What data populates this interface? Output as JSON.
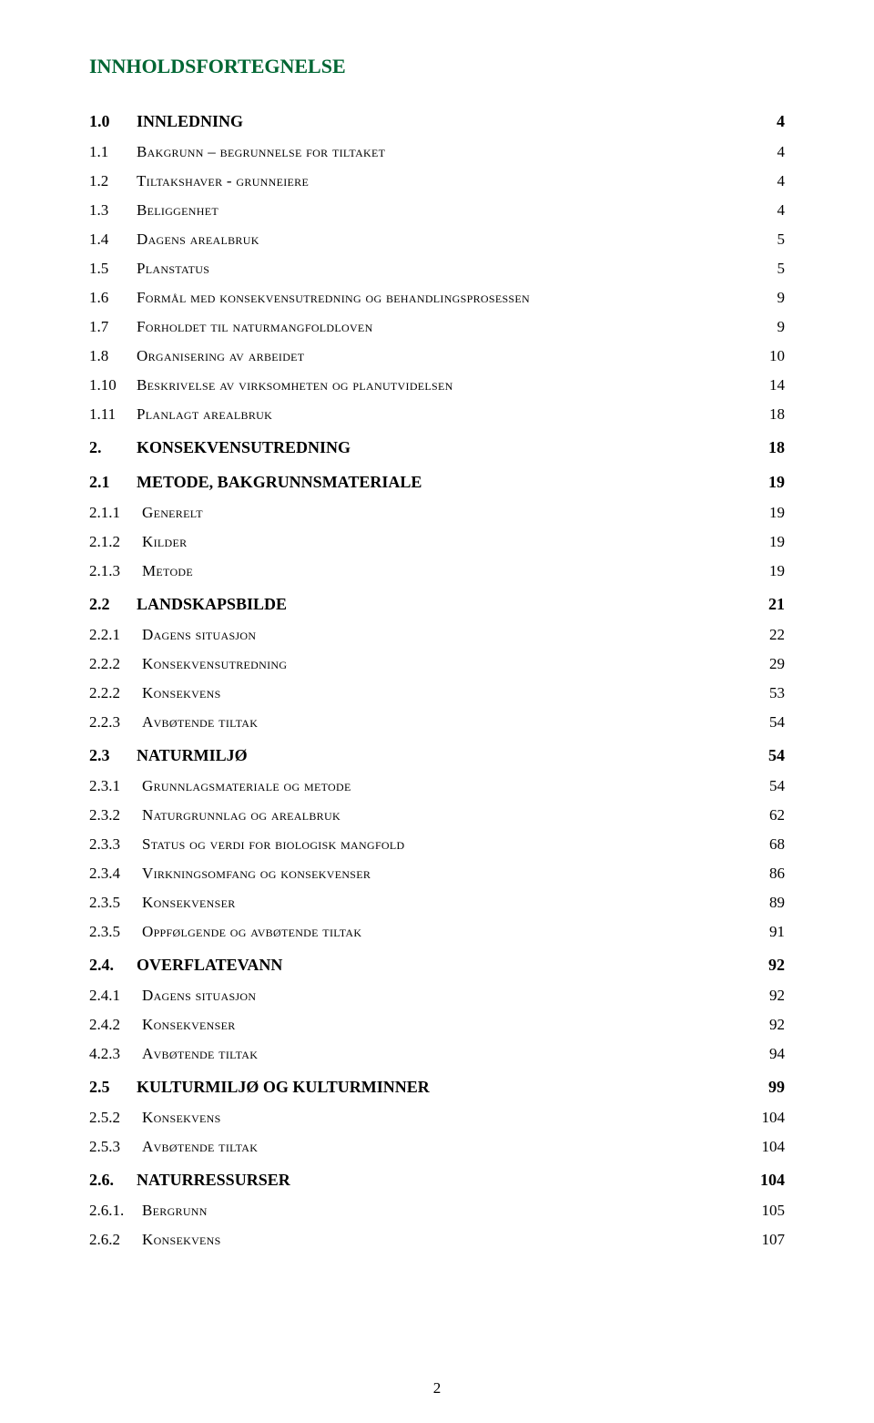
{
  "title": "INNHOLDSFORTEGNELSE",
  "title_color": "#006633",
  "page_number": "2",
  "entries": [
    {
      "level": "lvl1",
      "num": "1.0",
      "label": "INNLEDNING",
      "page": "4"
    },
    {
      "level": "lvl2sc",
      "num": "1.1",
      "label": "Bakgrunn – begrunnelse for tiltaket",
      "page": "4"
    },
    {
      "level": "lvl2sc",
      "num": "1.2",
      "label": "Tiltakshaver - grunneiere",
      "page": "4"
    },
    {
      "level": "lvl2sc",
      "num": "1.3",
      "label": "Beliggenhet",
      "page": "4"
    },
    {
      "level": "lvl2sc",
      "num": "1.4",
      "label": "Dagens arealbruk",
      "page": "5"
    },
    {
      "level": "lvl2sc",
      "num": "1.5",
      "label": "Planstatus",
      "page": "5"
    },
    {
      "level": "lvl2sc",
      "num": "1.6",
      "label": "Formål med konsekvensutredning og behandlingsprosessen",
      "page": "9"
    },
    {
      "level": "lvl2sc",
      "num": "1.7",
      "label": "Forholdet til naturmangfoldloven",
      "page": "9"
    },
    {
      "level": "lvl2sc",
      "num": "1.8",
      "label": "Organisering av arbeidet",
      "page": "10"
    },
    {
      "level": "lvl2sc",
      "num": "1.10",
      "label": "Beskrivelse av virksomheten og planutvidelsen",
      "page": "14"
    },
    {
      "level": "lvl2sc",
      "num": "1.11",
      "label": "Planlagt arealbruk",
      "page": "18"
    },
    {
      "level": "lvl1",
      "num": "2.",
      "label": "KONSEKVENSUTREDNING",
      "page": "18"
    },
    {
      "level": "lvl2b",
      "num": "2.1",
      "label": "METODE, BAKGRUNNSMATERIALE",
      "page": "19"
    },
    {
      "level": "lvl3",
      "num": "2.1.1",
      "label": "Generelt",
      "page": "19"
    },
    {
      "level": "lvl3",
      "num": "2.1.2",
      "label": "Kilder",
      "page": "19"
    },
    {
      "level": "lvl3",
      "num": "2.1.3",
      "label": "Metode",
      "page": "19"
    },
    {
      "level": "lvl2b",
      "num": "2.2",
      "label": "LANDSKAPSBILDE",
      "page": "21"
    },
    {
      "level": "lvl3",
      "num": "2.2.1",
      "label": "Dagens situasjon",
      "page": "22"
    },
    {
      "level": "lvl3",
      "num": "2.2.2",
      "label": "Konsekvensutredning",
      "page": "29"
    },
    {
      "level": "lvl3",
      "num": "2.2.2",
      "label": "Konsekvens",
      "page": "53"
    },
    {
      "level": "lvl3",
      "num": "2.2.3",
      "label": "Avbøtende tiltak",
      "page": "54"
    },
    {
      "level": "lvl2b",
      "num": "2.3",
      "label": "NATURMILJØ",
      "page": "54"
    },
    {
      "level": "lvl3",
      "num": "2.3.1",
      "label": "Grunnlagsmateriale og metode",
      "page": "54"
    },
    {
      "level": "lvl3",
      "num": "2.3.2",
      "label": "Naturgrunnlag og arealbruk",
      "page": "62"
    },
    {
      "level": "lvl3",
      "num": "2.3.3",
      "label": "Status og verdi for biologisk mangfold",
      "page": "68"
    },
    {
      "level": "lvl3",
      "num": "2.3.4",
      "label": "Virkningsomfang og konsekvenser",
      "page": "86"
    },
    {
      "level": "lvl3",
      "num": "2.3.5",
      "label": "Konsekvenser",
      "page": "89"
    },
    {
      "level": "lvl3",
      "num": "2.3.5",
      "label": "Oppfølgende og avbøtende tiltak",
      "page": "91"
    },
    {
      "level": "lvl2b",
      "num": "2.4.",
      "label": "OVERFLATEVANN",
      "page": "92"
    },
    {
      "level": "lvl3",
      "num": "2.4.1",
      "label": "Dagens situasjon",
      "page": "92"
    },
    {
      "level": "lvl3",
      "num": "2.4.2",
      "label": "Konsekvenser",
      "page": "92"
    },
    {
      "level": "lvl3",
      "num": "4.2.3",
      "label": "Avbøtende tiltak",
      "page": "94"
    },
    {
      "level": "lvl2b",
      "num": "2.5",
      "label": "KULTURMILJØ OG KULTURMINNER",
      "page": "99"
    },
    {
      "level": "lvl3",
      "num": "2.5.2",
      "label": "Konsekvens",
      "page": "104"
    },
    {
      "level": "lvl3",
      "num": "2.5.3",
      "label": "Avbøtende tiltak",
      "page": "104"
    },
    {
      "level": "lvl2b",
      "num": "2.6.",
      "label": "NATURRESSURSER",
      "page": "104"
    },
    {
      "level": "lvl3",
      "num": "2.6.1.",
      "label": "Bergrunn",
      "page": "105"
    },
    {
      "level": "lvl3",
      "num": "2.6.2",
      "label": "Konsekvens",
      "page": "107"
    }
  ]
}
